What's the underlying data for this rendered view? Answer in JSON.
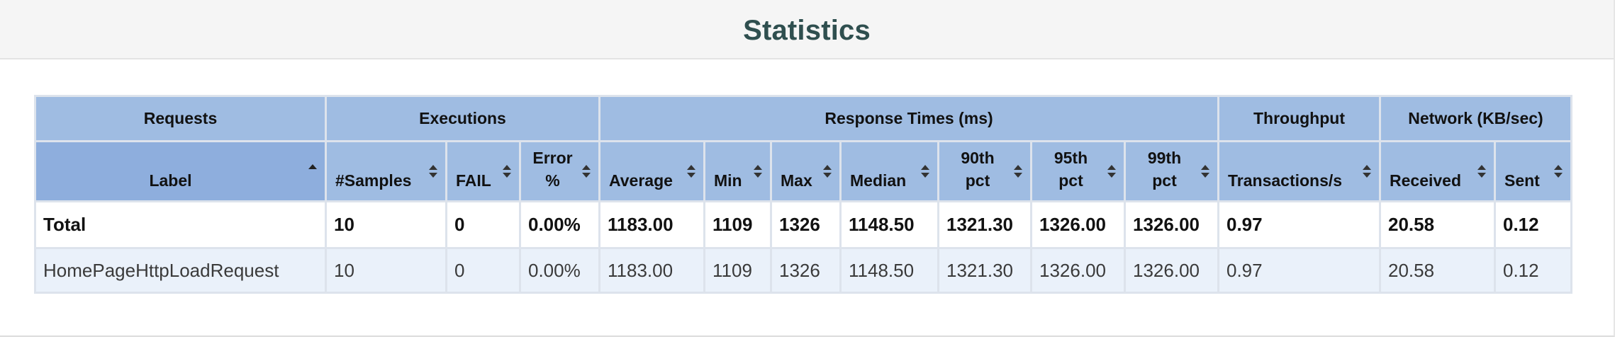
{
  "title": "Statistics",
  "group_headers": [
    {
      "label": "Requests"
    },
    {
      "label": "Executions"
    },
    {
      "label": "Response Times (ms)"
    },
    {
      "label": "Throughput"
    },
    {
      "label": "Network (KB/sec)"
    }
  ],
  "columns": [
    {
      "line1": "Label",
      "line2": "",
      "sort": "ascending"
    },
    {
      "line1": "#Samples",
      "line2": "",
      "sort": "both"
    },
    {
      "line1": "FAIL",
      "line2": "",
      "sort": "both"
    },
    {
      "line1": "Error",
      "line2": "%",
      "sort": "both"
    },
    {
      "line1": "Average",
      "line2": "",
      "sort": "both"
    },
    {
      "line1": "Min",
      "line2": "",
      "sort": "both"
    },
    {
      "line1": "Max",
      "line2": "",
      "sort": "both"
    },
    {
      "line1": "Median",
      "line2": "",
      "sort": "both"
    },
    {
      "line1": "90th",
      "line2": "pct",
      "sort": "both"
    },
    {
      "line1": "95th",
      "line2": "pct",
      "sort": "both"
    },
    {
      "line1": "99th",
      "line2": "pct",
      "sort": "both"
    },
    {
      "line1": "Transactions/s",
      "line2": "",
      "sort": "both"
    },
    {
      "line1": "Received",
      "line2": "",
      "sort": "both"
    },
    {
      "line1": "Sent",
      "line2": "",
      "sort": "both"
    }
  ],
  "rows": [
    {
      "type": "total",
      "cells": [
        "Total",
        "10",
        "0",
        "0.00%",
        "1183.00",
        "1109",
        "1326",
        "1148.50",
        "1321.30",
        "1326.00",
        "1326.00",
        "0.97",
        "20.58",
        "0.12"
      ]
    },
    {
      "type": "data",
      "cells": [
        "HomePageHttpLoadRequest",
        "10",
        "0",
        "0.00%",
        "1183.00",
        "1109",
        "1326",
        "1148.50",
        "1321.30",
        "1326.00",
        "1326.00",
        "0.97",
        "20.58",
        "0.12"
      ]
    }
  ],
  "colors": {
    "header_bg": "#9fbce2",
    "sorted_header_bg": "#8eaedd",
    "title_color": "#2f4f4f",
    "odd_row_bg": "#eaf1fa"
  }
}
